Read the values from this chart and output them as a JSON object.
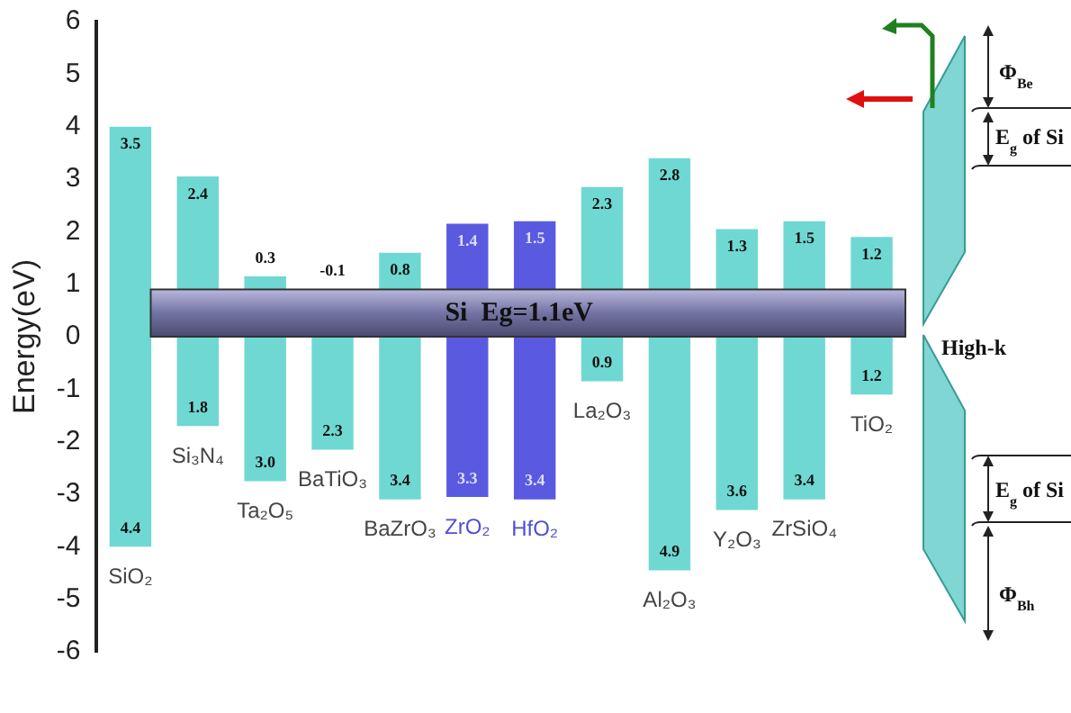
{
  "chart_data": {
    "type": "bar",
    "ylabel": "Energy(eV)",
    "categories": [
      "SiO₂",
      "Si₃N₄",
      "Ta₂O₅",
      "BaTiO₃",
      "BaZrO₃",
      "ZrO₂",
      "HfO₂",
      "La₂O₃",
      "Al₂O₃",
      "Y₂O₃",
      "ZrSiO₄",
      "TiO₂"
    ],
    "series": [
      {
        "colors": [
          "#6fd8d2",
          "#6fd8d2",
          "#6fd8d2",
          "#6fd8d2",
          "#6fd8d2",
          "#5a5ae0",
          "#5a5ae0",
          "#6fd8d2",
          "#6fd8d2",
          "#6fd8d2",
          "#6fd8d2",
          "#6fd8d2"
        ],
        "base": [
          -4.0,
          -1.7,
          -2.75,
          -2.15,
          -3.1,
          -3.05,
          -3.1,
          -0.85,
          -4.45,
          -3.3,
          -3.1,
          -1.1
        ],
        "values": [
          8.0,
          4.75,
          3.9,
          2.15,
          4.7,
          5.2,
          5.3,
          3.7,
          7.85,
          5.35,
          5.3,
          3.0
        ]
      }
    ],
    "bands": [
      {
        "axis": "y",
        "from": 0,
        "to": 0.9,
        "label": "Si  Eg=1.1eV",
        "color": "#7373a3"
      }
    ],
    "ylim": [
      -6,
      6
    ],
    "yticks": [
      -6,
      -5,
      -4,
      -3,
      -2,
      -1,
      0,
      1,
      2,
      3,
      4,
      5,
      6
    ],
    "annotations": [
      {
        "text": "3.5",
        "x": "SiO₂",
        "y": 4.0
      },
      {
        "text": "4.4",
        "x": "SiO₂",
        "y": -4.0
      },
      {
        "text": "2.4",
        "x": "Si₃N₄",
        "y": 3.05
      },
      {
        "text": "1.8",
        "x": "Si₃N₄",
        "y": -1.7
      },
      {
        "text": "0.3",
        "x": "Ta₂O₅",
        "y": 1.15
      },
      {
        "text": "3.0",
        "x": "Ta₂O₅",
        "y": -2.75
      },
      {
        "text": "-0.1",
        "x": "BaTiO₃",
        "y": 0.9
      },
      {
        "text": "2.3",
        "x": "BaTiO₃",
        "y": -2.15
      },
      {
        "text": "0.8",
        "x": "BaZrO₃",
        "y": 1.6
      },
      {
        "text": "3.4",
        "x": "BaZrO₃",
        "y": -3.1
      },
      {
        "text": "1.4",
        "x": "ZrO₂",
        "y": 2.15
      },
      {
        "text": "3.3",
        "x": "ZrO₂",
        "y": -3.05
      },
      {
        "text": "1.5",
        "x": "HfO₂",
        "y": 2.2
      },
      {
        "text": "3.4",
        "x": "HfO₂",
        "y": -3.1
      },
      {
        "text": "2.3",
        "x": "La₂O₃",
        "y": 2.85
      },
      {
        "text": "0.9",
        "x": "La₂O₃",
        "y": -0.85
      },
      {
        "text": "2.8",
        "x": "Al₂O₃",
        "y": 3.4
      },
      {
        "text": "4.9",
        "x": "Al₂O₃",
        "y": -4.45
      },
      {
        "text": "1.3",
        "x": "Y₂O₃",
        "y": 2.05
      },
      {
        "text": "3.6",
        "x": "Y₂O₃",
        "y": -3.3
      },
      {
        "text": "1.5",
        "x": "ZrSiO₄",
        "y": 2.2
      },
      {
        "text": "3.4",
        "x": "ZrSiO₄",
        "y": -3.1
      },
      {
        "text": "1.2",
        "x": "TiO₂",
        "y": 1.9
      },
      {
        "text": "1.2",
        "x": "TiO₂",
        "y": -1.1
      },
      "Φ$_{Be}$",
      "E$_{g}$ of Si",
      "High-k",
      "E$_{g}$ of Si",
      "Φ$_{Bh}$"
    ]
  }
}
